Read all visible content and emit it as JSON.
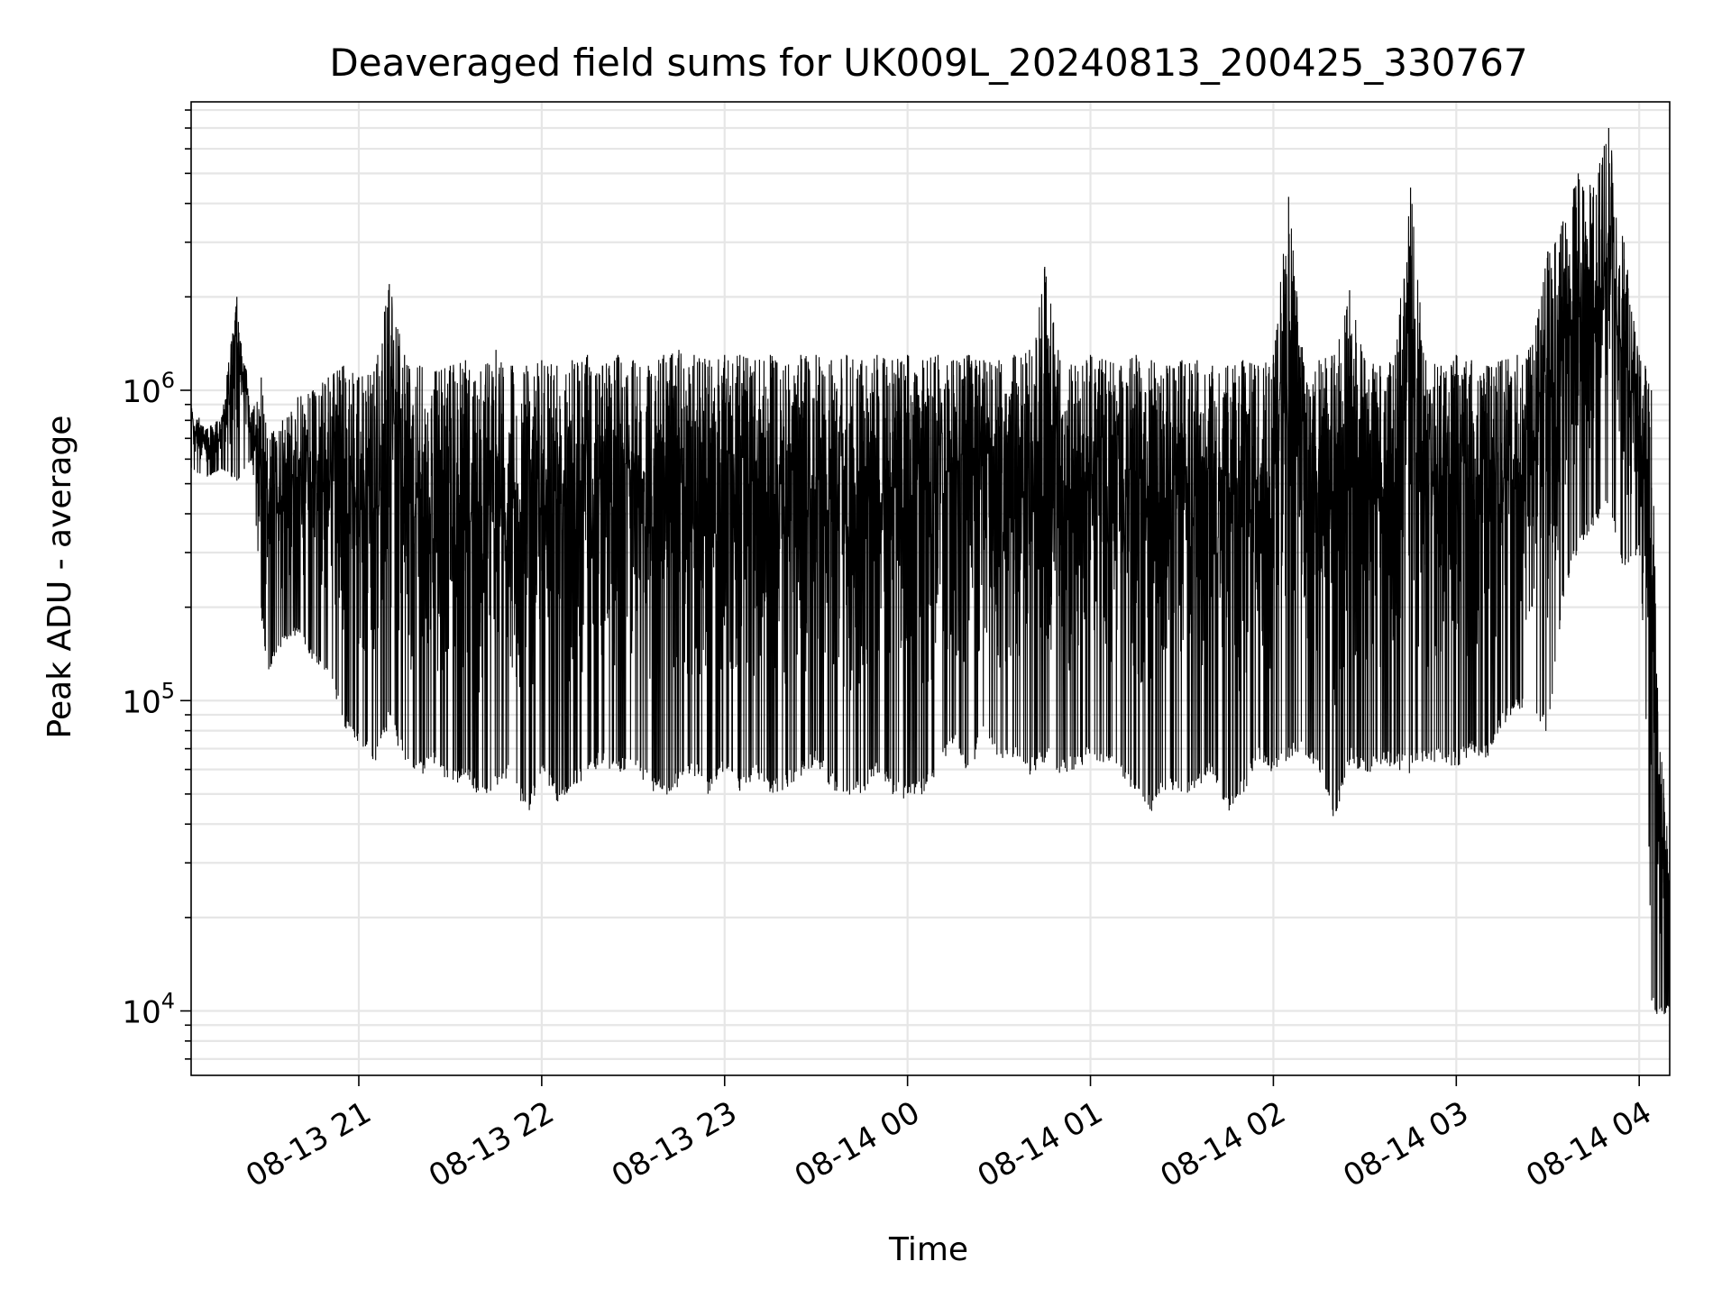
{
  "chart_data": {
    "type": "line",
    "title": "Deaveraged field sums for UK009L_20240813_200425_330767",
    "xlabel": "Time",
    "ylabel": "Peak ADU - average",
    "yscale": "log",
    "ylim": [
      6200,
      8500000
    ],
    "xlim": [
      "2024-08-13 20:05",
      "2024-08-14 04:10"
    ],
    "x_ticks": [
      "08-13 21",
      "08-13 22",
      "08-13 23",
      "08-14 00",
      "08-14 01",
      "08-14 02",
      "08-14 03",
      "08-14 04"
    ],
    "x_tick_times": [
      "2024-08-13 21:00",
      "2024-08-13 22:00",
      "2024-08-13 23:00",
      "2024-08-14 00:00",
      "2024-08-14 01:00",
      "2024-08-14 02:00",
      "2024-08-14 03:00",
      "2024-08-14 04:00"
    ],
    "y_ticks": [
      {
        "base": "10",
        "exp": "4",
        "value": 10000
      },
      {
        "base": "10",
        "exp": "5",
        "value": 100000
      },
      {
        "base": "10",
        "exp": "6",
        "value": 1000000
      }
    ],
    "grid": true,
    "line_color": "#000000",
    "grid_color": "#e6e6e6",
    "series": [
      {
        "x": [
          "2024-08-13 20:05",
          "2024-08-13 20:10",
          "2024-08-13 20:15",
          "2024-08-13 20:20",
          "2024-08-13 20:25",
          "2024-08-13 20:28",
          "2024-08-13 20:30",
          "2024-08-13 20:35",
          "2024-08-13 20:40",
          "2024-08-13 20:45",
          "2024-08-13 20:50",
          "2024-08-13 20:55",
          "2024-08-13 21:00",
          "2024-08-13 21:05",
          "2024-08-13 21:10",
          "2024-08-13 21:15",
          "2024-08-13 21:20",
          "2024-08-13 21:25",
          "2024-08-13 21:30",
          "2024-08-13 21:35",
          "2024-08-13 21:40",
          "2024-08-13 21:45",
          "2024-08-13 21:50",
          "2024-08-13 21:55",
          "2024-08-13 22:00",
          "2024-08-13 22:05",
          "2024-08-13 22:10",
          "2024-08-13 22:15",
          "2024-08-13 22:20",
          "2024-08-13 22:25",
          "2024-08-13 22:30",
          "2024-08-13 22:35",
          "2024-08-13 22:40",
          "2024-08-13 22:45",
          "2024-08-13 22:50",
          "2024-08-13 22:55",
          "2024-08-13 23:00",
          "2024-08-13 23:05",
          "2024-08-13 23:10",
          "2024-08-13 23:15",
          "2024-08-13 23:20",
          "2024-08-13 23:25",
          "2024-08-13 23:30",
          "2024-08-13 23:35",
          "2024-08-13 23:40",
          "2024-08-13 23:45",
          "2024-08-13 23:50",
          "2024-08-13 23:55",
          "2024-08-14 00:00",
          "2024-08-14 00:05",
          "2024-08-14 00:10",
          "2024-08-14 00:15",
          "2024-08-14 00:20",
          "2024-08-14 00:25",
          "2024-08-14 00:30",
          "2024-08-14 00:35",
          "2024-08-14 00:40",
          "2024-08-14 00:45",
          "2024-08-14 00:50",
          "2024-08-14 00:55",
          "2024-08-14 01:00",
          "2024-08-14 01:05",
          "2024-08-14 01:10",
          "2024-08-14 01:15",
          "2024-08-14 01:20",
          "2024-08-14 01:25",
          "2024-08-14 01:30",
          "2024-08-14 01:35",
          "2024-08-14 01:40",
          "2024-08-14 01:45",
          "2024-08-14 01:50",
          "2024-08-14 01:55",
          "2024-08-14 02:00",
          "2024-08-14 02:05",
          "2024-08-14 02:10",
          "2024-08-14 02:15",
          "2024-08-14 02:20",
          "2024-08-14 02:25",
          "2024-08-14 02:30",
          "2024-08-14 02:35",
          "2024-08-14 02:40",
          "2024-08-14 02:45",
          "2024-08-14 02:50",
          "2024-08-14 02:55",
          "2024-08-14 03:00",
          "2024-08-14 03:05",
          "2024-08-14 03:10",
          "2024-08-14 03:15",
          "2024-08-14 03:20",
          "2024-08-14 03:25",
          "2024-08-14 03:30",
          "2024-08-14 03:35",
          "2024-08-14 03:40",
          "2024-08-14 03:45",
          "2024-08-14 03:50",
          "2024-08-14 03:55",
          "2024-08-14 04:00",
          "2024-08-14 04:02",
          "2024-08-14 04:04",
          "2024-08-14 04:06",
          "2024-08-14 04:08",
          "2024-08-14 04:10"
        ],
        "max": [
          900000,
          750000,
          820000,
          2000000,
          850000,
          1100000,
          700000,
          800000,
          950000,
          1000000,
          1100000,
          1200000,
          1100000,
          1150000,
          2200000,
          1300000,
          1200000,
          1150000,
          1200000,
          1250000,
          1150000,
          1350000,
          1200000,
          1200000,
          1250000,
          1200000,
          1250000,
          1300000,
          1200000,
          1300000,
          1250000,
          1200000,
          1300000,
          1350000,
          1300000,
          1250000,
          1300000,
          1300000,
          1250000,
          1300000,
          1200000,
          1300000,
          1300000,
          1250000,
          1300000,
          1250000,
          1300000,
          1250000,
          1300000,
          1250000,
          1300000,
          1250000,
          1300000,
          1250000,
          1250000,
          1300000,
          1350000,
          2500000,
          1250000,
          1200000,
          1300000,
          1250000,
          1200000,
          1300000,
          1250000,
          1200000,
          1250000,
          1250000,
          1200000,
          1200000,
          1250000,
          1200000,
          1300000,
          4200000,
          1200000,
          1250000,
          1300000,
          2100000,
          1250000,
          1200000,
          1300000,
          4500000,
          1250000,
          1200000,
          1300000,
          1250000,
          1200000,
          1250000,
          1300000,
          1400000,
          2800000,
          3500000,
          5000000,
          4500000,
          7000000,
          3000000,
          1300000,
          1200000,
          1000000,
          110000,
          56000,
          30000
        ],
        "min": [
          550000,
          520000,
          550000,
          500000,
          600000,
          180000,
          120000,
          150000,
          160000,
          130000,
          120000,
          80000,
          70000,
          60000,
          80000,
          60000,
          55000,
          60000,
          50000,
          55000,
          45000,
          50000,
          55000,
          40000,
          55000,
          45000,
          50000,
          55000,
          60000,
          55000,
          58000,
          50000,
          47000,
          50000,
          55000,
          47000,
          58000,
          48000,
          55000,
          47000,
          50000,
          55000,
          60000,
          50000,
          45000,
          48000,
          55000,
          48000,
          45000,
          48000,
          55000,
          70000,
          55000,
          75000,
          58000,
          62000,
          55000,
          60000,
          55000,
          58000,
          62000,
          60000,
          55000,
          48000,
          42000,
          50000,
          45000,
          50000,
          55000,
          42000,
          48000,
          62000,
          55000,
          60000,
          65000,
          55000,
          38000,
          60000,
          55000,
          60000,
          58000,
          55000,
          60000,
          62000,
          58000,
          65000,
          62000,
          80000,
          90000,
          95000,
          70000,
          200000,
          300000,
          350000,
          400000,
          250000,
          300000,
          100000,
          10000,
          9000,
          9500,
          10000
        ]
      }
    ]
  }
}
